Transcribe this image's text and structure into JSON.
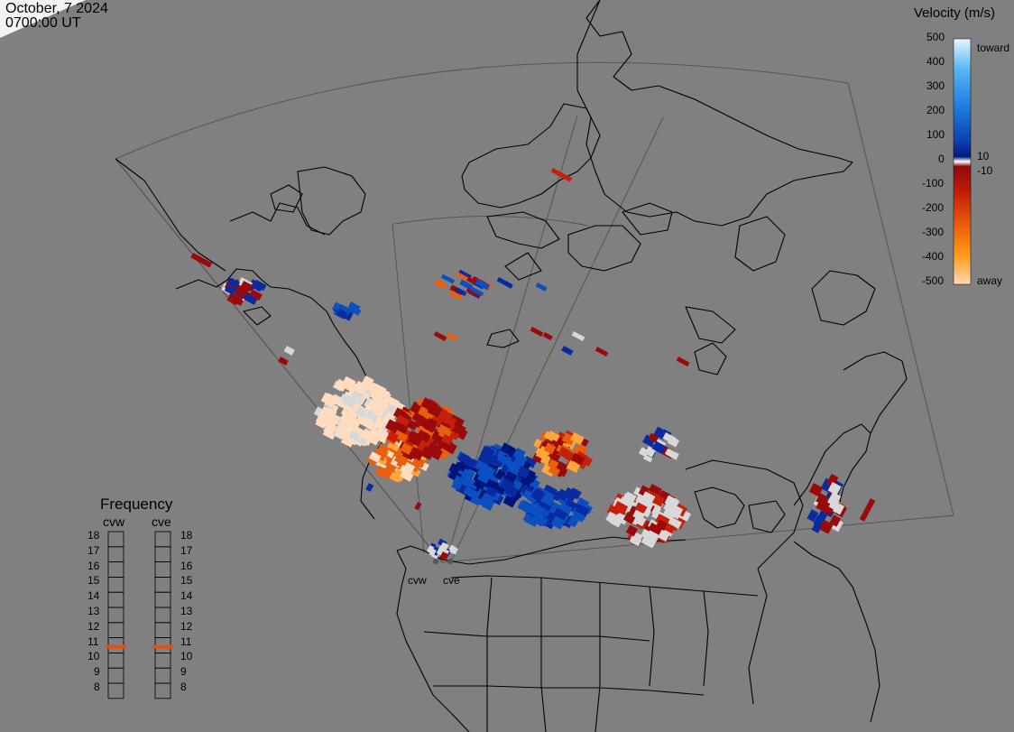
{
  "header": {
    "date": "October, 7 2024",
    "time": "0700:00 UT"
  },
  "colorbar": {
    "title": "Velocity (m/s)",
    "ticks": [
      "500",
      "400",
      "300",
      "200",
      "100",
      "0",
      "-100",
      "-200",
      "-300",
      "-400",
      "-500"
    ],
    "toward_label": "toward",
    "away_label": "away",
    "pos_label": "10",
    "neg_label": "-10",
    "stops": [
      "#e6f5ff",
      "#59b8f2",
      "#1e7be0",
      "#0b3fb0",
      "#001a80",
      "#ffffff",
      "#8c0a0a",
      "#c21a0a",
      "#e85a0a",
      "#ff9a1a",
      "#ffd8b0"
    ]
  },
  "frequency": {
    "title": "Frequency",
    "radars": [
      {
        "name": "cvw",
        "value": 10.9,
        "color": "#e85010"
      },
      {
        "name": "cve",
        "value": 10.9,
        "color": "#e85010"
      }
    ],
    "levels": [
      "18",
      "17",
      "16",
      "15",
      "14",
      "13",
      "12",
      "11",
      "10",
      "9",
      "8"
    ]
  },
  "sites": [
    {
      "name": "cvw"
    },
    {
      "name": "cve"
    }
  ]
}
